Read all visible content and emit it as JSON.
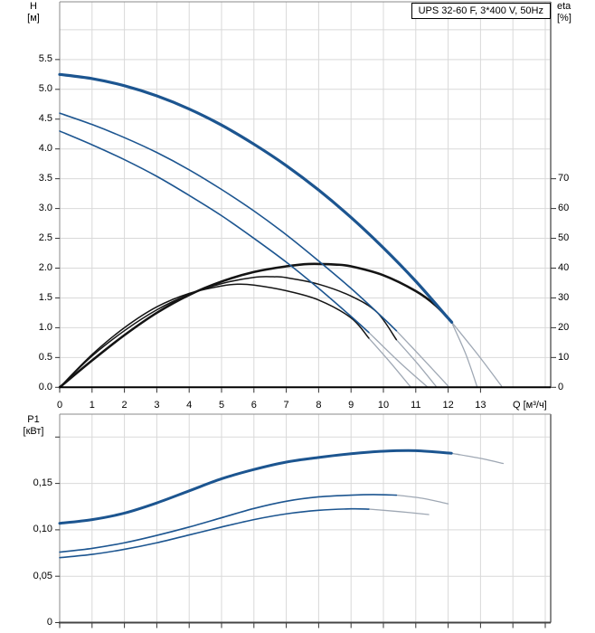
{
  "panel": {
    "title_box": "UPS 32-60 F, 3*400 V, 50Hz"
  },
  "colors": {
    "curve_blue": "#1c5590",
    "curve_black": "#141414",
    "extension_gray": "#9fa8b4",
    "grid": "#d9d9d9",
    "frame": "#8a8a8a",
    "axis_black": "#000000",
    "tick": "#333333"
  },
  "chart_data": [
    {
      "type": "line",
      "id": "hq",
      "title": "UPS 32-60 F, 3*400 V, 50Hz",
      "xlabel": "Q [м³/ч]",
      "ylabel_left": "H",
      "ylabel_left_unit": "[м]",
      "ylabel_right": "eta",
      "ylabel_right_unit": "[%]",
      "x_range": [
        0,
        15.17
      ],
      "y_left_range": [
        0,
        6.47
      ],
      "y_right_range": [
        0,
        129.4
      ],
      "grid": "on",
      "x_tick_values": [
        0,
        1,
        2,
        3,
        4,
        5,
        6,
        7,
        8,
        9,
        10,
        11,
        12,
        13
      ],
      "x_tick_labels": [
        "0",
        "1",
        "2",
        "3",
        "4",
        "5",
        "6",
        "7",
        "8",
        "9",
        "10",
        "11",
        "12",
        "13"
      ],
      "y_left_tick_values": [
        0,
        0.5,
        1.0,
        1.5,
        2.0,
        2.5,
        3.0,
        3.5,
        4.0,
        4.5,
        5.0,
        5.5
      ],
      "y_left_tick_labels": [
        "0.0",
        "0.5",
        "1.0",
        "1.5",
        "2.0",
        "2.5",
        "3.0",
        "3.5",
        "4.0",
        "4.5",
        "5.0",
        "5.5"
      ],
      "y_right_tick_values": [
        0,
        10,
        20,
        30,
        40,
        50,
        60,
        70
      ],
      "y_right_tick_labels": [
        "0",
        "10",
        "20",
        "30",
        "40",
        "50",
        "60",
        "70"
      ],
      "series": [
        {
          "name": "head-speed3",
          "axis": "H",
          "role": "curve_blue",
          "width": 3.2,
          "points": [
            [
              0,
              5.25
            ],
            [
              1,
              5.18
            ],
            [
              2,
              5.06
            ],
            [
              3,
              4.89
            ],
            [
              4,
              4.67
            ],
            [
              5,
              4.4
            ],
            [
              6,
              4.08
            ],
            [
              7,
              3.72
            ],
            [
              8,
              3.31
            ],
            [
              9,
              2.85
            ],
            [
              10,
              2.34
            ],
            [
              11,
              1.78
            ],
            [
              12,
              1.16
            ],
            [
              12.1,
              1.1
            ]
          ],
          "ext": [
            [
              12.1,
              1.1
            ],
            [
              12.9,
              0.56
            ],
            [
              13.65,
              0.02
            ]
          ]
        },
        {
          "name": "head-speed2",
          "axis": "H",
          "role": "curve_blue",
          "width": 1.6,
          "points": [
            [
              0,
              4.6
            ],
            [
              1,
              4.41
            ],
            [
              2,
              4.19
            ],
            [
              3,
              3.94
            ],
            [
              4,
              3.65
            ],
            [
              5,
              3.32
            ],
            [
              6,
              2.96
            ],
            [
              7,
              2.56
            ],
            [
              8,
              2.12
            ],
            [
              9,
              1.66
            ],
            [
              10,
              1.16
            ],
            [
              10.4,
              0.95
            ]
          ],
          "ext": [
            [
              10.4,
              0.95
            ],
            [
              11.2,
              0.49
            ],
            [
              12.0,
              0.02
            ]
          ]
        },
        {
          "name": "head-speed1",
          "axis": "H",
          "role": "curve_blue",
          "width": 1.6,
          "points": [
            [
              0,
              4.3
            ],
            [
              1,
              4.07
            ],
            [
              2,
              3.82
            ],
            [
              3,
              3.54
            ],
            [
              4,
              3.22
            ],
            [
              5,
              2.88
            ],
            [
              6,
              2.5
            ],
            [
              7,
              2.1
            ],
            [
              8,
              1.66
            ],
            [
              9,
              1.19
            ],
            [
              9.55,
              0.92
            ]
          ],
          "ext": [
            [
              9.55,
              0.92
            ],
            [
              10.5,
              0.42
            ],
            [
              11.37,
              0.0
            ]
          ]
        },
        {
          "name": "eta-speed3",
          "axis": "eta",
          "role": "curve_black",
          "width": 2.6,
          "points": [
            [
              0,
              0
            ],
            [
              1,
              9
            ],
            [
              2,
              17.5
            ],
            [
              3,
              25
            ],
            [
              4,
              31
            ],
            [
              5,
              35.5
            ],
            [
              6,
              38.7
            ],
            [
              7,
              40.6
            ],
            [
              7.7,
              41.4
            ],
            [
              8.5,
              41.2
            ],
            [
              9,
              40.6
            ],
            [
              10,
              37.6
            ],
            [
              11,
              32.3
            ],
            [
              11.6,
              27.6
            ],
            [
              12.1,
              22
            ]
          ],
          "ext": [
            [
              12.1,
              22
            ],
            [
              12.55,
              11
            ],
            [
              12.9,
              0
            ]
          ]
        },
        {
          "name": "eta-speed2",
          "axis": "eta",
          "role": "curve_black",
          "width": 1.5,
          "points": [
            [
              0,
              0
            ],
            [
              1,
              10.5
            ],
            [
              2,
              19
            ],
            [
              3,
              26
            ],
            [
              4,
              31.2
            ],
            [
              5,
              34.8
            ],
            [
              6,
              36.9
            ],
            [
              6.6,
              37.1
            ],
            [
              7,
              36.8
            ],
            [
              8,
              34.6
            ],
            [
              9,
              30.6
            ],
            [
              9.8,
              25.2
            ],
            [
              10.4,
              16
            ]
          ],
          "ext": [
            [
              10.4,
              16
            ],
            [
              11.05,
              8
            ],
            [
              11.65,
              0
            ]
          ]
        },
        {
          "name": "eta-speed1",
          "axis": "eta",
          "role": "curve_black",
          "width": 1.5,
          "points": [
            [
              0,
              0
            ],
            [
              1,
              11
            ],
            [
              2,
              20
            ],
            [
              3,
              27
            ],
            [
              4,
              31.5
            ],
            [
              5,
              34
            ],
            [
              5.5,
              34.6
            ],
            [
              6,
              34.3
            ],
            [
              7,
              32.4
            ],
            [
              8,
              29.3
            ],
            [
              9,
              23.3
            ],
            [
              9.55,
              16.5
            ]
          ],
          "ext": [
            [
              9.55,
              16.5
            ],
            [
              10.2,
              8.5
            ],
            [
              10.85,
              0
            ]
          ]
        }
      ]
    },
    {
      "type": "line",
      "id": "p1",
      "ylabel_left": "P1",
      "ylabel_left_unit": "[кВт]",
      "x_range": [
        0,
        15.17
      ],
      "y_range": [
        0,
        0.224
      ],
      "grid": "on",
      "x_tick_values": [
        0,
        1,
        2,
        3,
        4,
        5,
        6,
        7,
        8,
        9,
        10,
        11,
        12,
        13,
        14,
        15
      ],
      "x_tick_labels": [],
      "y_tick_values": [
        0,
        0.05,
        0.1,
        0.15,
        0.2
      ],
      "y_tick_labels": [
        "0",
        "0,05",
        "0,10",
        "0,15",
        ""
      ],
      "series": [
        {
          "name": "power-speed3",
          "role": "curve_blue",
          "width": 3.0,
          "points": [
            [
              0,
              0.107
            ],
            [
              1,
              0.111
            ],
            [
              2,
              0.118
            ],
            [
              3,
              0.129
            ],
            [
              4,
              0.142
            ],
            [
              5,
              0.155
            ],
            [
              6,
              0.165
            ],
            [
              7,
              0.173
            ],
            [
              8,
              0.178
            ],
            [
              9,
              0.182
            ],
            [
              10,
              0.1847
            ],
            [
              11,
              0.1853
            ],
            [
              12.1,
              0.1825
            ]
          ],
          "ext": [
            [
              12.1,
              0.1825
            ],
            [
              13,
              0.177
            ],
            [
              13.7,
              0.1715
            ]
          ]
        },
        {
          "name": "power-speed2",
          "role": "curve_blue",
          "width": 1.6,
          "points": [
            [
              0,
              0.076
            ],
            [
              1,
              0.08
            ],
            [
              2,
              0.086
            ],
            [
              3,
              0.094
            ],
            [
              4,
              0.103
            ],
            [
              5,
              0.113
            ],
            [
              6,
              0.123
            ],
            [
              7,
              0.1308
            ],
            [
              8,
              0.1355
            ],
            [
              9,
              0.1374
            ],
            [
              9.7,
              0.138
            ],
            [
              10.4,
              0.1374
            ]
          ],
          "ext": [
            [
              10.4,
              0.1374
            ],
            [
              11.2,
              0.134
            ],
            [
              12.0,
              0.128
            ]
          ]
        },
        {
          "name": "power-speed1",
          "role": "curve_blue",
          "width": 1.6,
          "points": [
            [
              0,
              0.07
            ],
            [
              1,
              0.0735
            ],
            [
              2,
              0.079
            ],
            [
              3,
              0.086
            ],
            [
              4,
              0.0945
            ],
            [
              5,
              0.103
            ],
            [
              6,
              0.111
            ],
            [
              7,
              0.1172
            ],
            [
              8,
              0.121
            ],
            [
              9,
              0.1226
            ],
            [
              9.55,
              0.1223
            ]
          ],
          "ext": [
            [
              9.55,
              0.1223
            ],
            [
              10.5,
              0.1196
            ],
            [
              11.4,
              0.1165
            ]
          ]
        }
      ]
    }
  ]
}
